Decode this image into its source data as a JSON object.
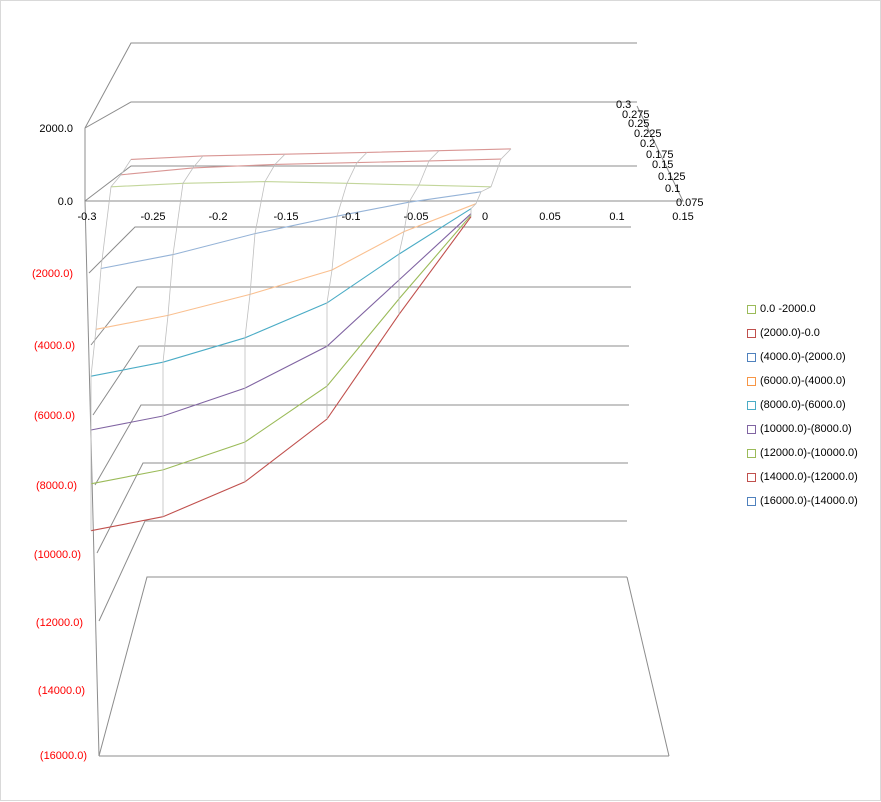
{
  "chart_data": {
    "type": "surface-wireframe",
    "x_ticks": [
      "-0.3",
      "-0.25",
      "-0.2",
      "-0.15",
      "-0.1",
      "-0.05",
      "0",
      "0.05",
      "0.1",
      "0.15"
    ],
    "depth_ticks": [
      "0.075",
      "0.1",
      "0.125",
      "0.15",
      "0.175",
      "0.2",
      "0.225",
      "0.25",
      "0.275",
      "0.3"
    ],
    "z_ticks": [
      {
        "label": "2000.0",
        "color": "#000000"
      },
      {
        "label": "0.0",
        "color": "#000000"
      },
      {
        "label": "(2000.0)",
        "color": "#ff0000"
      },
      {
        "label": "(4000.0)",
        "color": "#ff0000"
      },
      {
        "label": "(6000.0)",
        "color": "#ff0000"
      },
      {
        "label": "(8000.0)",
        "color": "#ff0000"
      },
      {
        "label": "(10000.0)",
        "color": "#ff0000"
      },
      {
        "label": "(12000.0)",
        "color": "#ff0000"
      },
      {
        "label": "(14000.0)",
        "color": "#ff0000"
      },
      {
        "label": "(16000.0)",
        "color": "#ff0000"
      }
    ],
    "legend": [
      {
        "name": "0.0 -2000.0",
        "color": "#9bbb59"
      },
      {
        "name": "(2000.0)-0.0",
        "color": "#c0504d"
      },
      {
        "name": "(4000.0)-(2000.0)",
        "color": "#4f81bd"
      },
      {
        "name": "(6000.0)-(4000.0)",
        "color": "#f79646"
      },
      {
        "name": "(8000.0)-(6000.0)",
        "color": "#4bacc6"
      },
      {
        "name": "(10000.0)-(8000.0)",
        "color": "#8064a2"
      },
      {
        "name": "(12000.0)-(10000.0)",
        "color": "#9bbb59"
      },
      {
        "name": "(14000.0)-(12000.0)",
        "color": "#c0504d"
      },
      {
        "name": "(16000.0)-(14000.0)",
        "color": "#4f81bd"
      }
    ],
    "legend_position": "right",
    "surface_rows": [
      {
        "color": "#d99694",
        "values": [
          1100,
          1200,
          1250,
          1300,
          1350,
          1400
        ]
      },
      {
        "color": "#d99694",
        "values": [
          600,
          800,
          900,
          950,
          1000,
          1050
        ]
      },
      {
        "color": "#c3d69b",
        "values": [
          200,
          300,
          350,
          300,
          250,
          200
        ]
      },
      {
        "color": "#95b3d7",
        "values": [
          -2200,
          -1800,
          -1200,
          -700,
          -300,
          0
        ]
      },
      {
        "color": "#fac090",
        "values": [
          -4000,
          -3600,
          -3000,
          -2300,
          -1200,
          -400
        ]
      },
      {
        "color": "#4bacc6",
        "values": [
          -5400,
          -5000,
          -4300,
          -3300,
          -1900,
          -600
        ]
      },
      {
        "color": "#8064a2",
        "values": [
          -7000,
          -6600,
          -5800,
          -4600,
          -2700,
          -800
        ]
      },
      {
        "color": "#9bbb59",
        "values": [
          -8600,
          -8200,
          -7400,
          -5800,
          -3300,
          -900
        ]
      },
      {
        "color": "#c0504d",
        "values": [
          -10000,
          -9600,
          -8600,
          -6800,
          -3800,
          -1000
        ]
      }
    ]
  }
}
